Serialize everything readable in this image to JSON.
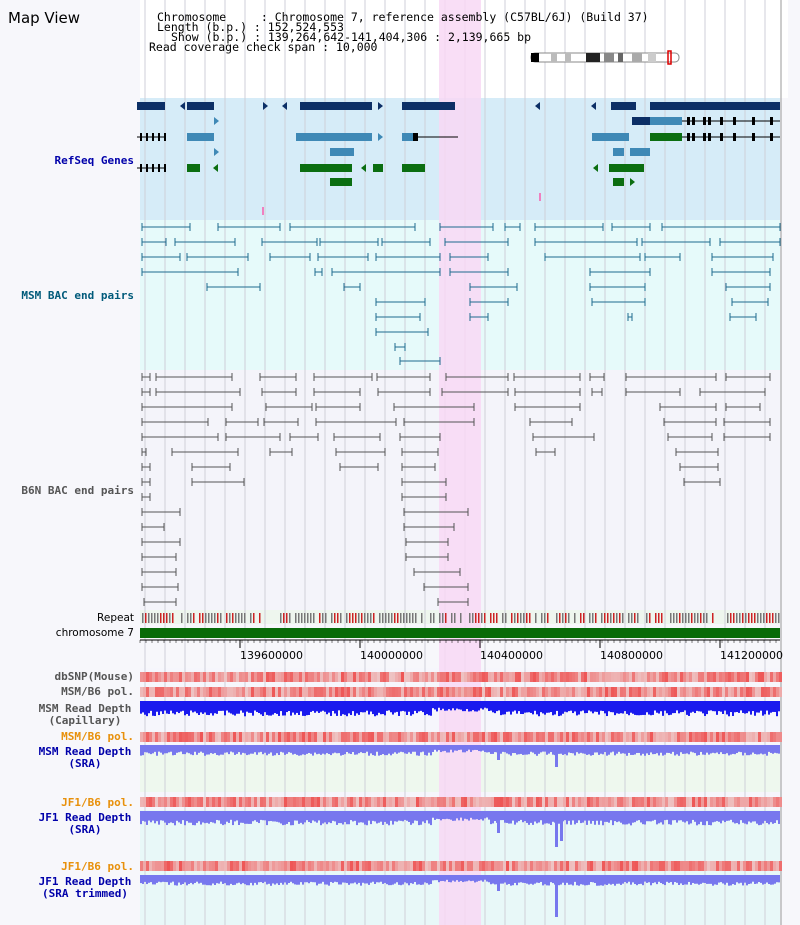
{
  "page": {
    "title": "Map View"
  },
  "header": {
    "chromosome_line": "Chromosome     : Chromosome 7, reference assembly (C57BL/6J) (Build 37)",
    "length_line": "Length (b.p.) : 152,524,553",
    "show_line": "Show (b.p.) : 139,264,642-141,404,306 : 2,139,665 bp",
    "coverage_line": "Read coverage check span : 10,000"
  },
  "tracks": {
    "refseq": "RefSeq Genes",
    "msm_bac": "MSM BAC end pairs",
    "b6n_bac": "B6N BAC end pairs",
    "repeat": "Repeat",
    "chromosome": "chromosome 7",
    "dbsnp": "dbSNP(Mouse)",
    "msm_b6_pol": "MSM/B6 pol.",
    "msm_depth_cap_1": "MSM Read Depth",
    "msm_depth_cap_2": "(Capillary)",
    "msm_b6_pol_2": "MSM/B6 pol.",
    "msm_depth_sra_1": "MSM Read Depth",
    "msm_depth_sra_2": "(SRA)",
    "jf1_b6_pol": "JF1/B6 pol.",
    "jf1_depth_sra_1": "JF1 Read Depth",
    "jf1_depth_sra_2": "(SRA)",
    "jf1_b6_pol_2": "JF1/B6 pol.",
    "jf1_depth_trim_1": "JF1 Read Depth",
    "jf1_depth_trim_2": "(SRA trimmed)"
  },
  "axis": {
    "ticks": [
      "139600000",
      "140000000",
      "140400000",
      "140800000",
      "141200000"
    ]
  },
  "colors": {
    "refseq_bg": "#d6ecf8",
    "msm_bg": "#e6fafa",
    "b6n_bg": "#f4f4fa",
    "highlight": "#f8d8f4",
    "gene_dark": "#0c2f66",
    "gene_mid": "#3f89b6",
    "gene_green": "#0b6e11",
    "msm_pair": "#1f6b8e",
    "b6n_pair": "#555555",
    "chrom_bar": "#086b08",
    "depth_dark": "#1a1aee",
    "depth_light": "#7777ee",
    "label_blue": "#0000aa",
    "label_teal": "#005a7a",
    "label_orange": "#e8900a"
  }
}
